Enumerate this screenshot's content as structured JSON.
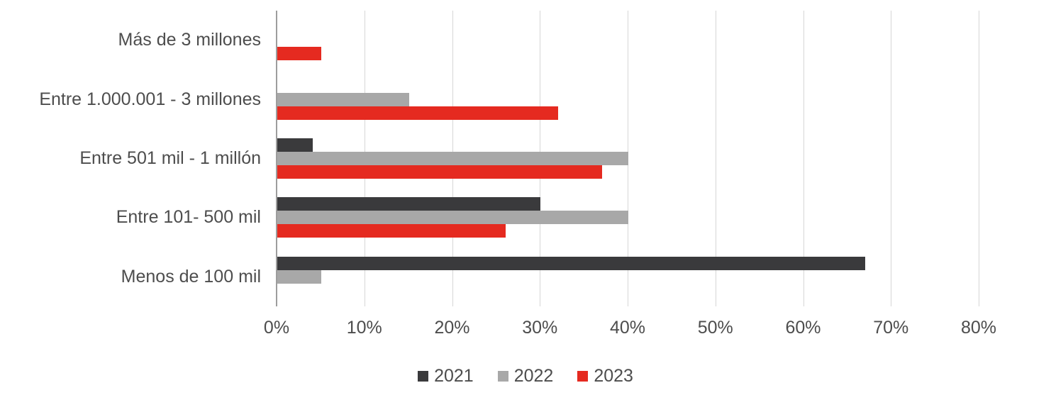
{
  "chart_data": {
    "type": "bar",
    "orientation": "horizontal",
    "title": "",
    "categories": [
      "Más de 3 millones",
      "Entre 1.000.001 - 3 millones",
      "Entre 501 mil - 1 millón",
      "Entre 101- 500 mil",
      "Menos de 100 mil"
    ],
    "series": [
      {
        "name": "2021",
        "color": "#3a3a3c",
        "values": [
          0,
          0,
          4,
          30,
          67
        ]
      },
      {
        "name": "2022",
        "color": "#a8a8a8",
        "values": [
          0,
          15,
          40,
          40,
          5
        ]
      },
      {
        "name": "2023",
        "color": "#e52a20",
        "values": [
          5,
          32,
          37,
          26,
          0
        ]
      }
    ],
    "xlim": [
      0,
      80
    ],
    "x_tick_step": 10,
    "x_ticks": [
      "0%",
      "10%",
      "20%",
      "30%",
      "40%",
      "50%",
      "60%",
      "70%",
      "80%"
    ],
    "grid": "vertical",
    "legend_position": "bottom",
    "colors": {
      "background": "#ffffff",
      "gridline": "#d6d6d6",
      "axis_line": "#9d9d9d",
      "text": "#4d4d4d"
    }
  }
}
